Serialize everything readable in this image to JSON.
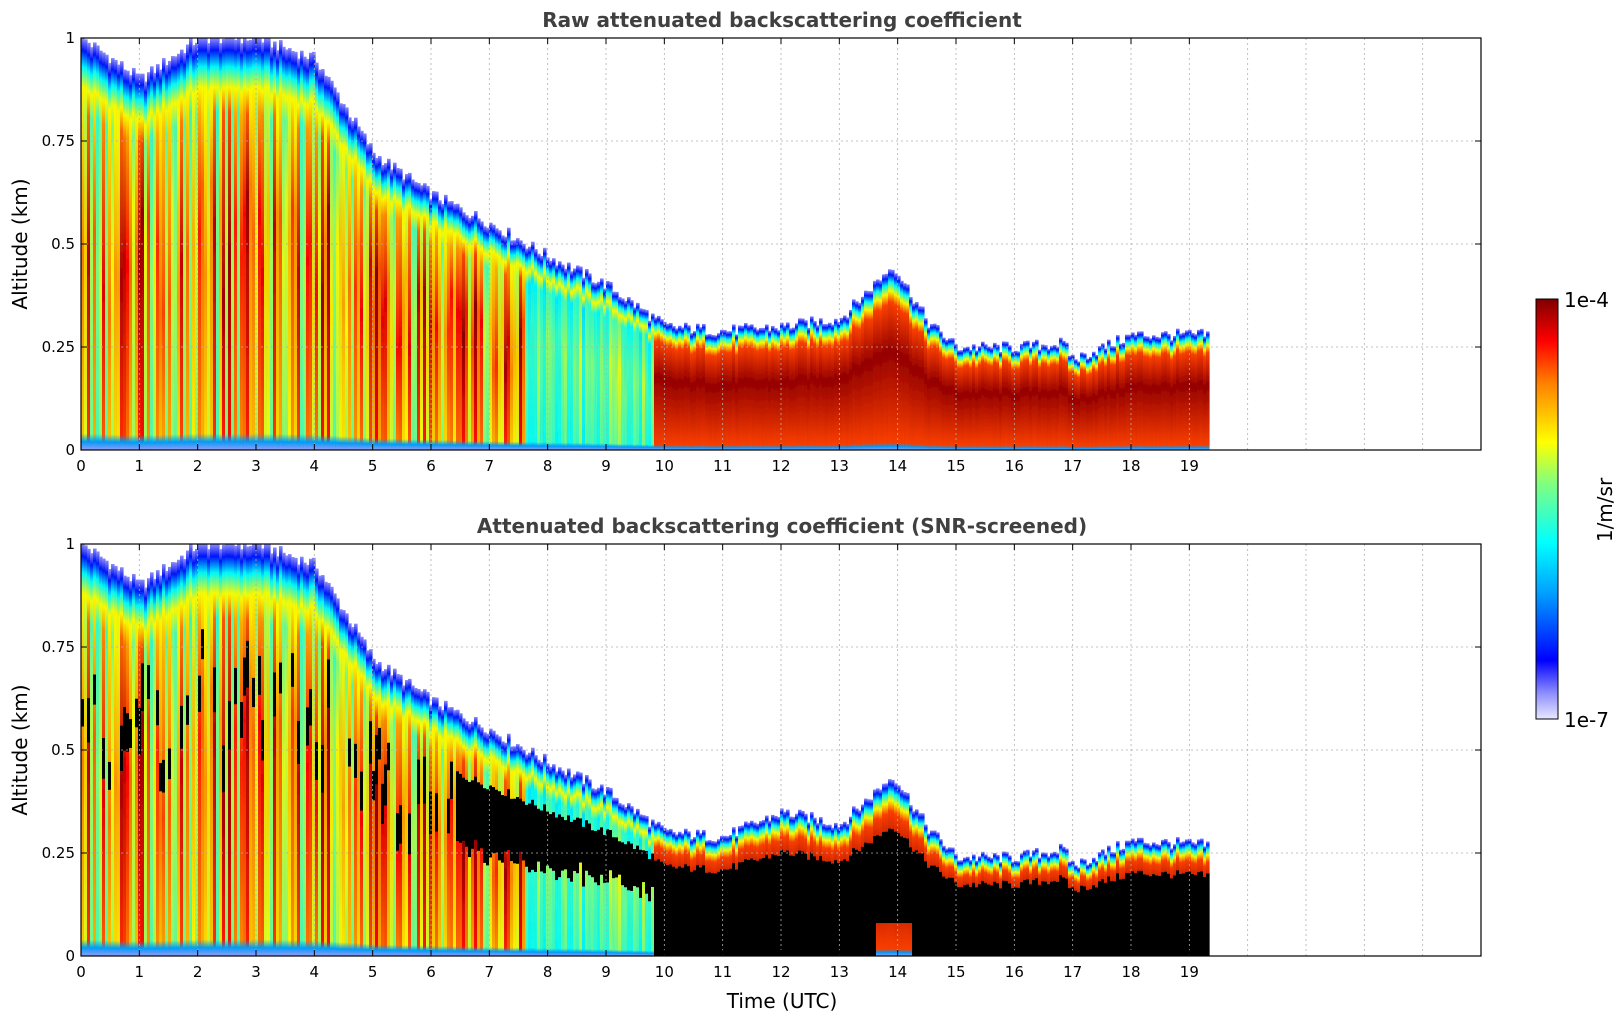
{
  "chart_data": [
    {
      "type": "heatmap",
      "title": "Raw attenuated backscattering coefficient",
      "xlabel": "",
      "ylabel": "Altitude (km)",
      "xlim": [
        0,
        24
      ],
      "ylim": [
        0,
        1
      ],
      "xticks": [
        "0",
        "1",
        "2",
        "3",
        "4",
        "5",
        "6",
        "7",
        "8",
        "9",
        "10",
        "11",
        "12",
        "13",
        "14",
        "15",
        "16",
        "17",
        "18",
        "19"
      ],
      "yticks": [
        "0",
        "0.25",
        "0.5",
        "0.75",
        "1"
      ],
      "data_end_time": 19.3,
      "grid": true,
      "cloud_top_km": [
        [
          0,
          1.0
        ],
        [
          1,
          0.9
        ],
        [
          2,
          1.0
        ],
        [
          3,
          1.0
        ],
        [
          4,
          0.95
        ],
        [
          5,
          0.72
        ],
        [
          6,
          0.62
        ],
        [
          7,
          0.55
        ],
        [
          8,
          0.47
        ],
        [
          9,
          0.4
        ],
        [
          10,
          0.3
        ],
        [
          11,
          0.29
        ],
        [
          12,
          0.3
        ],
        [
          13,
          0.32
        ],
        [
          13.9,
          0.45
        ],
        [
          14.5,
          0.31
        ],
        [
          15,
          0.25
        ],
        [
          16,
          0.25
        ],
        [
          16.8,
          0.26
        ],
        [
          17,
          0.22
        ],
        [
          18,
          0.28
        ],
        [
          19.3,
          0.28
        ]
      ],
      "saturation": "raw"
    },
    {
      "type": "heatmap",
      "title": "Attenuated backscattering coefficient (SNR-screened)",
      "xlabel": "Time (UTC)",
      "ylabel": "Altitude (km)",
      "xlim": [
        0,
        24
      ],
      "ylim": [
        0,
        1
      ],
      "xticks": [
        "0",
        "1",
        "2",
        "3",
        "4",
        "5",
        "6",
        "7",
        "8",
        "9",
        "10",
        "11",
        "12",
        "13",
        "14",
        "15",
        "16",
        "17",
        "18",
        "19"
      ],
      "yticks": [
        "0",
        "0.25",
        "0.5",
        "0.75",
        "1"
      ],
      "data_end_time": 19.3,
      "grid": true,
      "cloud_top_km": [
        [
          0,
          1.0
        ],
        [
          1,
          0.9
        ],
        [
          2,
          1.0
        ],
        [
          3,
          1.0
        ],
        [
          4,
          0.95
        ],
        [
          5,
          0.72
        ],
        [
          6,
          0.62
        ],
        [
          7,
          0.55
        ],
        [
          8,
          0.47
        ],
        [
          9,
          0.4
        ],
        [
          10,
          0.3
        ],
        [
          11,
          0.29
        ],
        [
          12,
          0.35
        ],
        [
          13,
          0.32
        ],
        [
          13.9,
          0.44
        ],
        [
          14.5,
          0.31
        ],
        [
          15,
          0.24
        ],
        [
          16,
          0.24
        ],
        [
          16.8,
          0.26
        ],
        [
          17,
          0.22
        ],
        [
          18,
          0.28
        ],
        [
          19.3,
          0.27
        ]
      ],
      "saturation": "screened-black"
    }
  ],
  "colorbar": {
    "label": "1/m/sr",
    "max_label": "1e-4",
    "min_label": "1e-7",
    "colormap": "jet"
  }
}
